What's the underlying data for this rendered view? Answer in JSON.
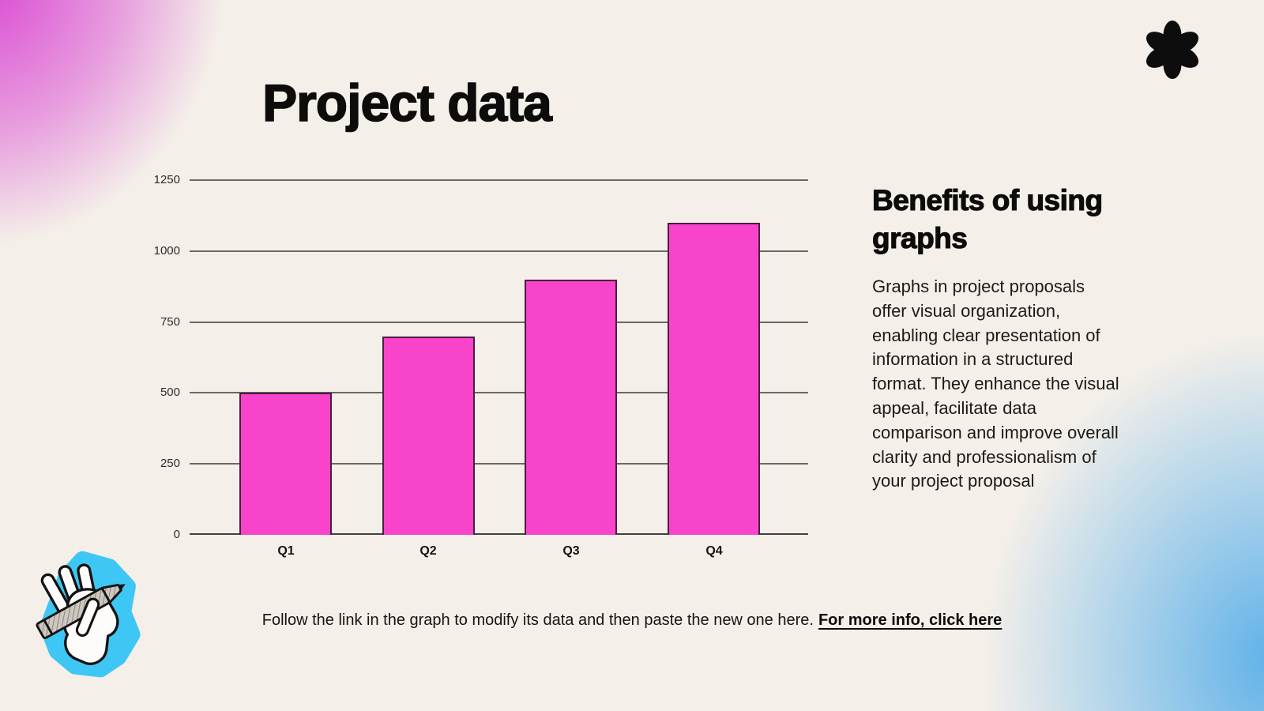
{
  "slide": {
    "title": "Project data"
  },
  "benefits": {
    "heading": "Benefits of using graphs",
    "body": "Graphs in project proposals offer visual organization, enabling clear presentation of information in a structured format. They enhance the visual appeal, facilitate data comparison and improve overall clarity and professionalism of your project proposal"
  },
  "footer": {
    "text": "Follow the link in the graph to modify its data and then paste the new one here.",
    "link_label": "For more info, click here"
  },
  "icons": {
    "asterisk": "flower-asterisk",
    "hand": "hand-holding-pen"
  },
  "colors": {
    "background": "#F4EFE9",
    "bar_fill": "#F843CB",
    "bar_border": "#4B1C40",
    "gridline": "#6B6764",
    "axis": "#44403D",
    "heading_text": "#0D0C0B",
    "gradient_pink": "#D83AD1",
    "gradient_blue": "#52ACE9",
    "hand_accent": "#3EC7F4"
  },
  "chart_data": {
    "type": "bar",
    "title": "Project data",
    "categories": [
      "Q1",
      "Q2",
      "Q3",
      "Q4"
    ],
    "values": [
      500,
      700,
      900,
      1100
    ],
    "xlabel": "",
    "ylabel": "",
    "ylim": [
      0,
      1250
    ],
    "yticks": [
      0,
      250,
      500,
      750,
      1000,
      1250
    ],
    "grid": true,
    "legend": false
  }
}
